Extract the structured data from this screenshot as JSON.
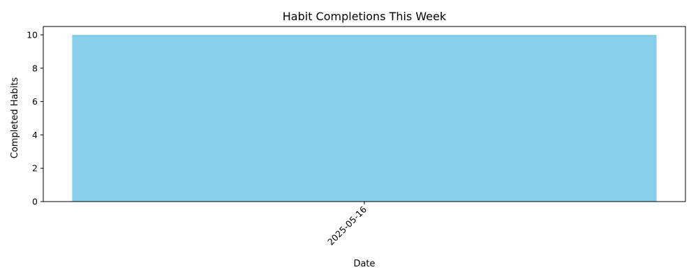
{
  "colors": {
    "bar": "#87CEEB",
    "axis": "#000000",
    "background": "#ffffff"
  },
  "chart_data": {
    "type": "bar",
    "title": "Habit Completions This Week",
    "xlabel": "Date",
    "ylabel": "Completed Habits",
    "categories": [
      "2025-05-16"
    ],
    "values": [
      10
    ],
    "ylim": [
      0,
      10.5
    ],
    "yticks": [
      0,
      2,
      4,
      6,
      8,
      10
    ],
    "xtick_rotation": 45,
    "grid": false,
    "legend": "none"
  }
}
